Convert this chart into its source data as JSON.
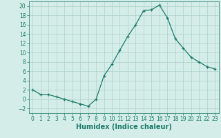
{
  "x": [
    0,
    1,
    2,
    3,
    4,
    5,
    6,
    7,
    8,
    9,
    10,
    11,
    12,
    13,
    14,
    15,
    16,
    17,
    18,
    19,
    20,
    21,
    22,
    23
  ],
  "y": [
    2,
    1,
    1,
    0.5,
    0,
    -0.5,
    -1,
    -1.5,
    0,
    5,
    7.5,
    10.5,
    13.5,
    16,
    19,
    19.2,
    20.2,
    17.5,
    13,
    11,
    9,
    8,
    7,
    6.5
  ],
  "line_color": "#1a7a6a",
  "marker_color": "#1a7a6a",
  "bg_color": "#d4ede8",
  "grid_color": "#b0cfc9",
  "xlabel": "Humidex (Indice chaleur)",
  "xlim": [
    -0.5,
    23.5
  ],
  "ylim": [
    -3,
    21
  ],
  "yticks": [
    -2,
    0,
    2,
    4,
    6,
    8,
    10,
    12,
    14,
    16,
    18,
    20
  ],
  "xticks": [
    0,
    1,
    2,
    3,
    4,
    5,
    6,
    7,
    8,
    9,
    10,
    11,
    12,
    13,
    14,
    15,
    16,
    17,
    18,
    19,
    20,
    21,
    22,
    23
  ],
  "xlabel_color": "#1a7a6a",
  "tick_color": "#1a7a6a",
  "label_fontsize": 7,
  "tick_fontsize": 5.5
}
